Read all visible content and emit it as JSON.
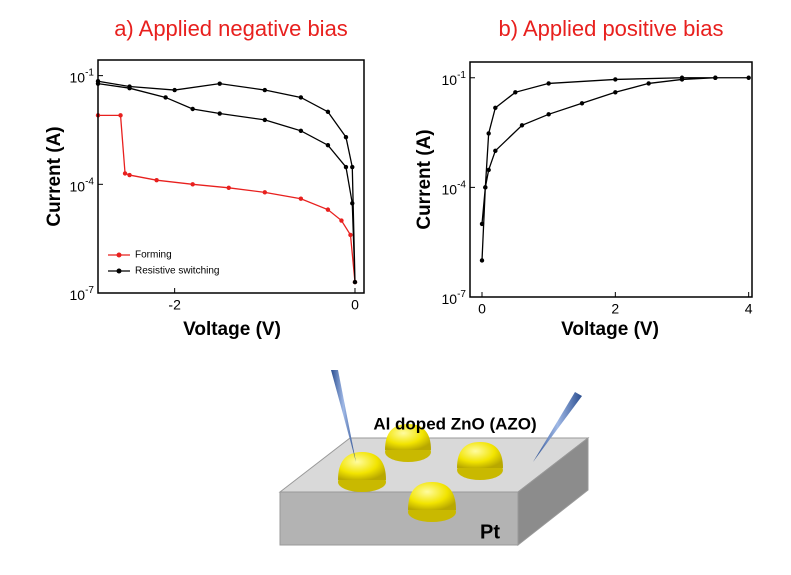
{
  "chart_data": [
    {
      "type": "line",
      "title": "a) Applied negative bias",
      "xlabel": "Voltage (V)",
      "ylabel": "Current (A)",
      "log_y": true,
      "legend": "lower left",
      "xlim": [
        -2.85,
        0.1
      ],
      "xticks": [
        -2,
        0
      ],
      "ylim": [
        1e-07,
        0.27
      ],
      "yticks": [
        {
          "value": 1e-07,
          "label": "10-7"
        },
        {
          "value": 0.0001,
          "label": "10-4"
        },
        {
          "value": 0.1,
          "label": "10-1"
        }
      ],
      "series": [
        {
          "name": "Forming",
          "color": "#e8201e",
          "x": [
            -2.85,
            -2.6,
            -2.55,
            -2.5,
            -2.2,
            -1.8,
            -1.4,
            -1.0,
            -0.6,
            -0.3,
            -0.15,
            -0.05,
            0
          ],
          "values": [
            0.008,
            0.008,
            0.0002,
            0.00018,
            0.00013,
            0.0001,
            8e-05,
            6e-05,
            4e-05,
            2e-05,
            1e-05,
            4e-06,
            2e-07
          ]
        },
        {
          "name": "Resistive switching",
          "color": "#000000",
          "x": [
            -2.85,
            -2.5,
            -2.1,
            -1.8,
            -1.5,
            -1.0,
            -0.6,
            -0.3,
            -0.1,
            -0.03,
            0,
            -0.03,
            -0.1,
            -0.3,
            -0.6,
            -1.0,
            -1.5,
            -2.0,
            -2.5,
            -2.85
          ],
          "values": [
            0.06,
            0.045,
            0.025,
            0.012,
            0.009,
            0.006,
            0.003,
            0.0012,
            0.0003,
            3e-05,
            2e-07,
            0.0003,
            0.002,
            0.01,
            0.025,
            0.04,
            0.06,
            0.04,
            0.05,
            0.07
          ]
        }
      ]
    },
    {
      "type": "line",
      "title": "b) Applied positive bias",
      "xlabel": "Voltage (V)",
      "ylabel": "Current (A)",
      "log_y": true,
      "xlim": [
        -0.18,
        4.05
      ],
      "xticks": [
        0,
        2,
        4
      ],
      "ylim": [
        1e-07,
        0.27
      ],
      "yticks": [
        {
          "value": 1e-07,
          "label": "10-7"
        },
        {
          "value": 0.0001,
          "label": "10-4"
        },
        {
          "value": 0.1,
          "label": "10-1"
        }
      ],
      "series": [
        {
          "color": "#000000",
          "x": [
            0,
            0.05,
            0.1,
            0.2,
            0.6,
            1.0,
            1.5,
            2.0,
            2.5,
            3.0,
            3.5,
            4.0,
            3.5,
            3.0,
            2.0,
            1.0,
            0.5,
            0.2,
            0.1,
            0.05,
            0
          ],
          "values": [
            1e-05,
            0.0001,
            0.0003,
            0.001,
            0.005,
            0.01,
            0.02,
            0.04,
            0.07,
            0.09,
            0.1,
            0.1,
            0.1,
            0.1,
            0.09,
            0.07,
            0.04,
            0.015,
            0.003,
            0.0001,
            1e-06
          ]
        }
      ]
    }
  ],
  "diagram": {
    "top_label": "Al doped ZnO (AZO)",
    "bottom_label": "Pt"
  }
}
